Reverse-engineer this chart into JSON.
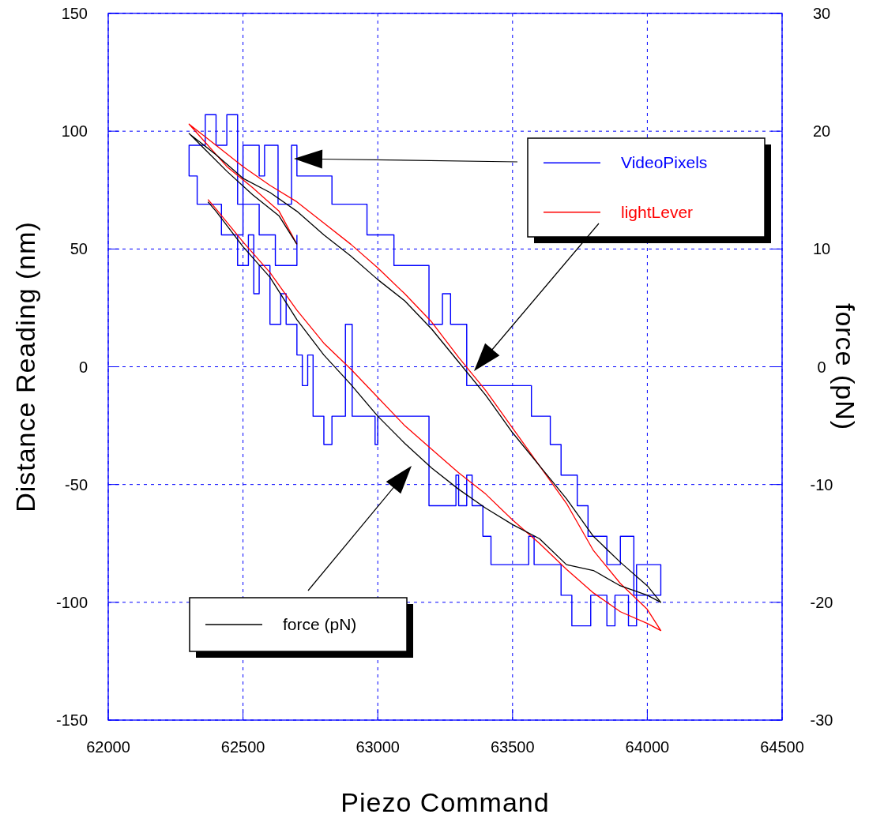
{
  "chart_data": {
    "type": "line",
    "xlabel": "Piezo Command",
    "ylabel": "Distance Reading (nm)",
    "y2label": "force (pN)",
    "xlim": [
      62000,
      64500
    ],
    "xticks": [
      62000,
      62500,
      63000,
      63500,
      64000,
      64500
    ],
    "ylim": [
      -150,
      150
    ],
    "yticks": [
      -150,
      -100,
      -50,
      0,
      50,
      100,
      150
    ],
    "y2lim": [
      -30,
      30
    ],
    "y2ticks": [
      -30,
      -20,
      -10,
      0,
      10,
      20,
      30
    ],
    "grid": true,
    "legend": "right",
    "line_style": "solid",
    "marker": "none",
    "series": [
      {
        "name": "VideoPixels",
        "type": "step",
        "color": "#0000ff",
        "x": [
          62370,
          62420,
          62480,
          62520,
          62540,
          62560,
          62600,
          62640,
          62660,
          62700,
          62720,
          62740,
          62760,
          62800,
          62830,
          62880,
          62905,
          62990,
          63000,
          63190,
          63290,
          63300,
          63330,
          63350,
          63390,
          63420,
          63560,
          63580,
          63620,
          63680,
          63720,
          63790,
          63850,
          63880,
          63930,
          63960,
          64030,
          64050,
          64010,
          63950,
          63900,
          63850,
          63800,
          63780,
          63740,
          63680,
          63640,
          63570,
          63480,
          63460,
          63400,
          63370,
          63330,
          63270,
          63240,
          63190,
          63080,
          63060,
          62980,
          62960,
          62860,
          62830,
          62760,
          62700,
          62680,
          62630,
          62580,
          62560,
          62500,
          62480,
          62440,
          62400,
          62360,
          62320,
          62300,
          62330,
          62350,
          62420,
          62500,
          62560,
          62620,
          62700
        ],
        "values": [
          69,
          56,
          43,
          56,
          31,
          43,
          18,
          31,
          18,
          5,
          -8,
          5,
          -21,
          -33,
          -21,
          18,
          -21,
          -33,
          -21,
          -59,
          -46,
          -59,
          -46,
          -59,
          -72,
          -84,
          -72,
          -84,
          -84,
          -97,
          -110,
          -97,
          -110,
          -97,
          -110,
          -84,
          -84,
          -97,
          -97,
          -72,
          -84,
          -72,
          -72,
          -59,
          -46,
          -33,
          -21,
          -8,
          -8,
          -8,
          -8,
          -8,
          18,
          31,
          18,
          43,
          43,
          56,
          56,
          69,
          69,
          81,
          81,
          94,
          69,
          94,
          81,
          94,
          69,
          107,
          94,
          107,
          94,
          94,
          81,
          69,
          69,
          56,
          69,
          56,
          43,
          56
        ]
      },
      {
        "name": "lightLever",
        "type": "line",
        "color": "#ff0000",
        "x": [
          62370,
          62400,
          62500,
          62600,
          62700,
          62800,
          62900,
          63000,
          63100,
          63200,
          63300,
          63400,
          63500,
          63600,
          63700,
          63800,
          63900,
          64000,
          64050,
          64000,
          63900,
          63800,
          63700,
          63600,
          63500,
          63400,
          63300,
          63200,
          63100,
          63000,
          62900,
          62800,
          62700,
          62600,
          62500,
          62400,
          62300,
          62440,
          62536,
          62634,
          62700
        ],
        "values": [
          71,
          67,
          53,
          40,
          24,
          10,
          -1,
          -13,
          -25,
          -35,
          -45,
          -54,
          -65,
          -75,
          -86,
          -96,
          -104,
          -109,
          -112,
          -103,
          -92,
          -78,
          -58,
          -42,
          -26,
          -10,
          4,
          19,
          31,
          42,
          52,
          61,
          70,
          77,
          85,
          94,
          103,
          85,
          76,
          66,
          52
        ]
      },
      {
        "name": "force (pN)",
        "type": "line",
        "axis": "y2",
        "color": "#000000",
        "x": [
          62370,
          62400,
          62500,
          62600,
          62700,
          62800,
          62900,
          63000,
          63100,
          63200,
          63300,
          63400,
          63500,
          63600,
          63700,
          63800,
          63900,
          64000,
          64050,
          64000,
          63900,
          63800,
          63700,
          63600,
          63500,
          63400,
          63300,
          63200,
          63100,
          63000,
          62900,
          62800,
          62700,
          62600,
          62500,
          62400,
          62300,
          62440,
          62536,
          62634,
          62700
        ],
        "values": [
          14,
          13.2,
          10.2,
          7.6,
          4,
          1,
          -1.5,
          -4.2,
          -6.5,
          -8.6,
          -10.4,
          -12,
          -13.4,
          -14.6,
          -16.8,
          -17.3,
          -18.6,
          -19.4,
          -20,
          -18.6,
          -16.6,
          -14.4,
          -11.2,
          -8.4,
          -5.6,
          -2.4,
          0.4,
          3.2,
          5.6,
          7.4,
          9.4,
          11.2,
          13.2,
          14.8,
          16,
          18,
          19.8,
          16.6,
          14.6,
          12.8,
          10.4
        ]
      }
    ]
  }
}
